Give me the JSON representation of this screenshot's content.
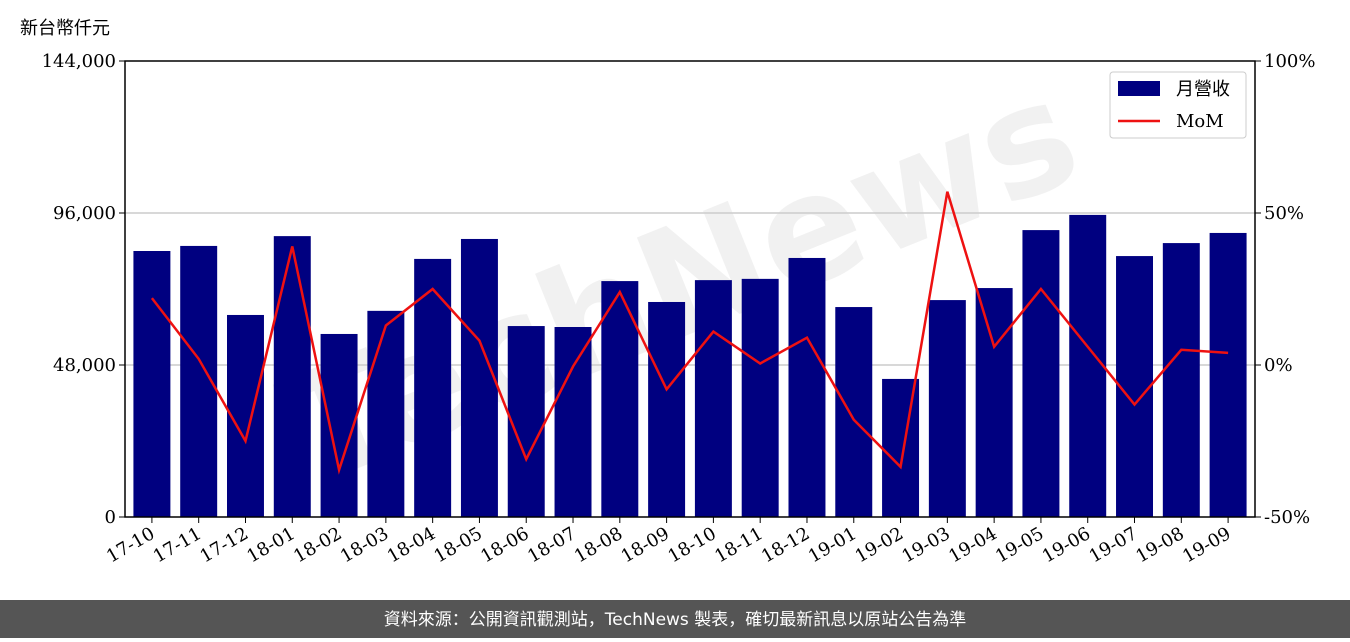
{
  "chart_data": {
    "type": "bar-line",
    "y_label": "新台幣仟元",
    "watermark": "TechNews",
    "categories": [
      "17-10",
      "17-11",
      "17-12",
      "18-01",
      "18-02",
      "18-03",
      "18-04",
      "18-05",
      "18-06",
      "18-07",
      "18-08",
      "18-09",
      "18-10",
      "18-11",
      "18-12",
      "19-01",
      "19-02",
      "19-03",
      "19-04",
      "19-05",
      "19-06",
      "19-07",
      "19-08",
      "19-09"
    ],
    "series": [
      {
        "name": "月營收",
        "type": "bar",
        "color": "#000080",
        "values": [
          84000,
          85600,
          63800,
          88700,
          57800,
          65100,
          81500,
          87800,
          60300,
          60000,
          74500,
          67900,
          74800,
          75200,
          81800,
          66300,
          43600,
          68500,
          72300,
          90600,
          95400,
          82400,
          86500,
          89700
        ]
      },
      {
        "name": "MoM",
        "type": "line",
        "axis": "y2",
        "color": "#ee1111",
        "values": [
          22,
          2,
          -25,
          39,
          -34.5,
          13,
          25,
          8,
          -31,
          -0.5,
          24,
          -8,
          11,
          0.5,
          9,
          -18,
          -33.5,
          57,
          6,
          25,
          6,
          -13,
          5,
          4
        ]
      }
    ],
    "ylim": [
      0,
      144000
    ],
    "yticks": [
      {
        "value": 0,
        "label": "0"
      },
      {
        "value": 48000,
        "label": "48,000"
      },
      {
        "value": 96000,
        "label": "96,000"
      },
      {
        "value": 144000,
        "label": "144,000"
      }
    ],
    "y2lim": [
      -50,
      100
    ],
    "y2ticks": [
      {
        "value": -50,
        "label": "-50%"
      },
      {
        "value": 0,
        "label": "0%"
      },
      {
        "value": 50,
        "label": "50%"
      },
      {
        "value": 100,
        "label": "100%"
      }
    ],
    "grid": true,
    "legend": "upper right"
  },
  "footer": "資料來源：公開資訊觀測站，TechNews 製表，確切最新訊息以原站公告為準"
}
